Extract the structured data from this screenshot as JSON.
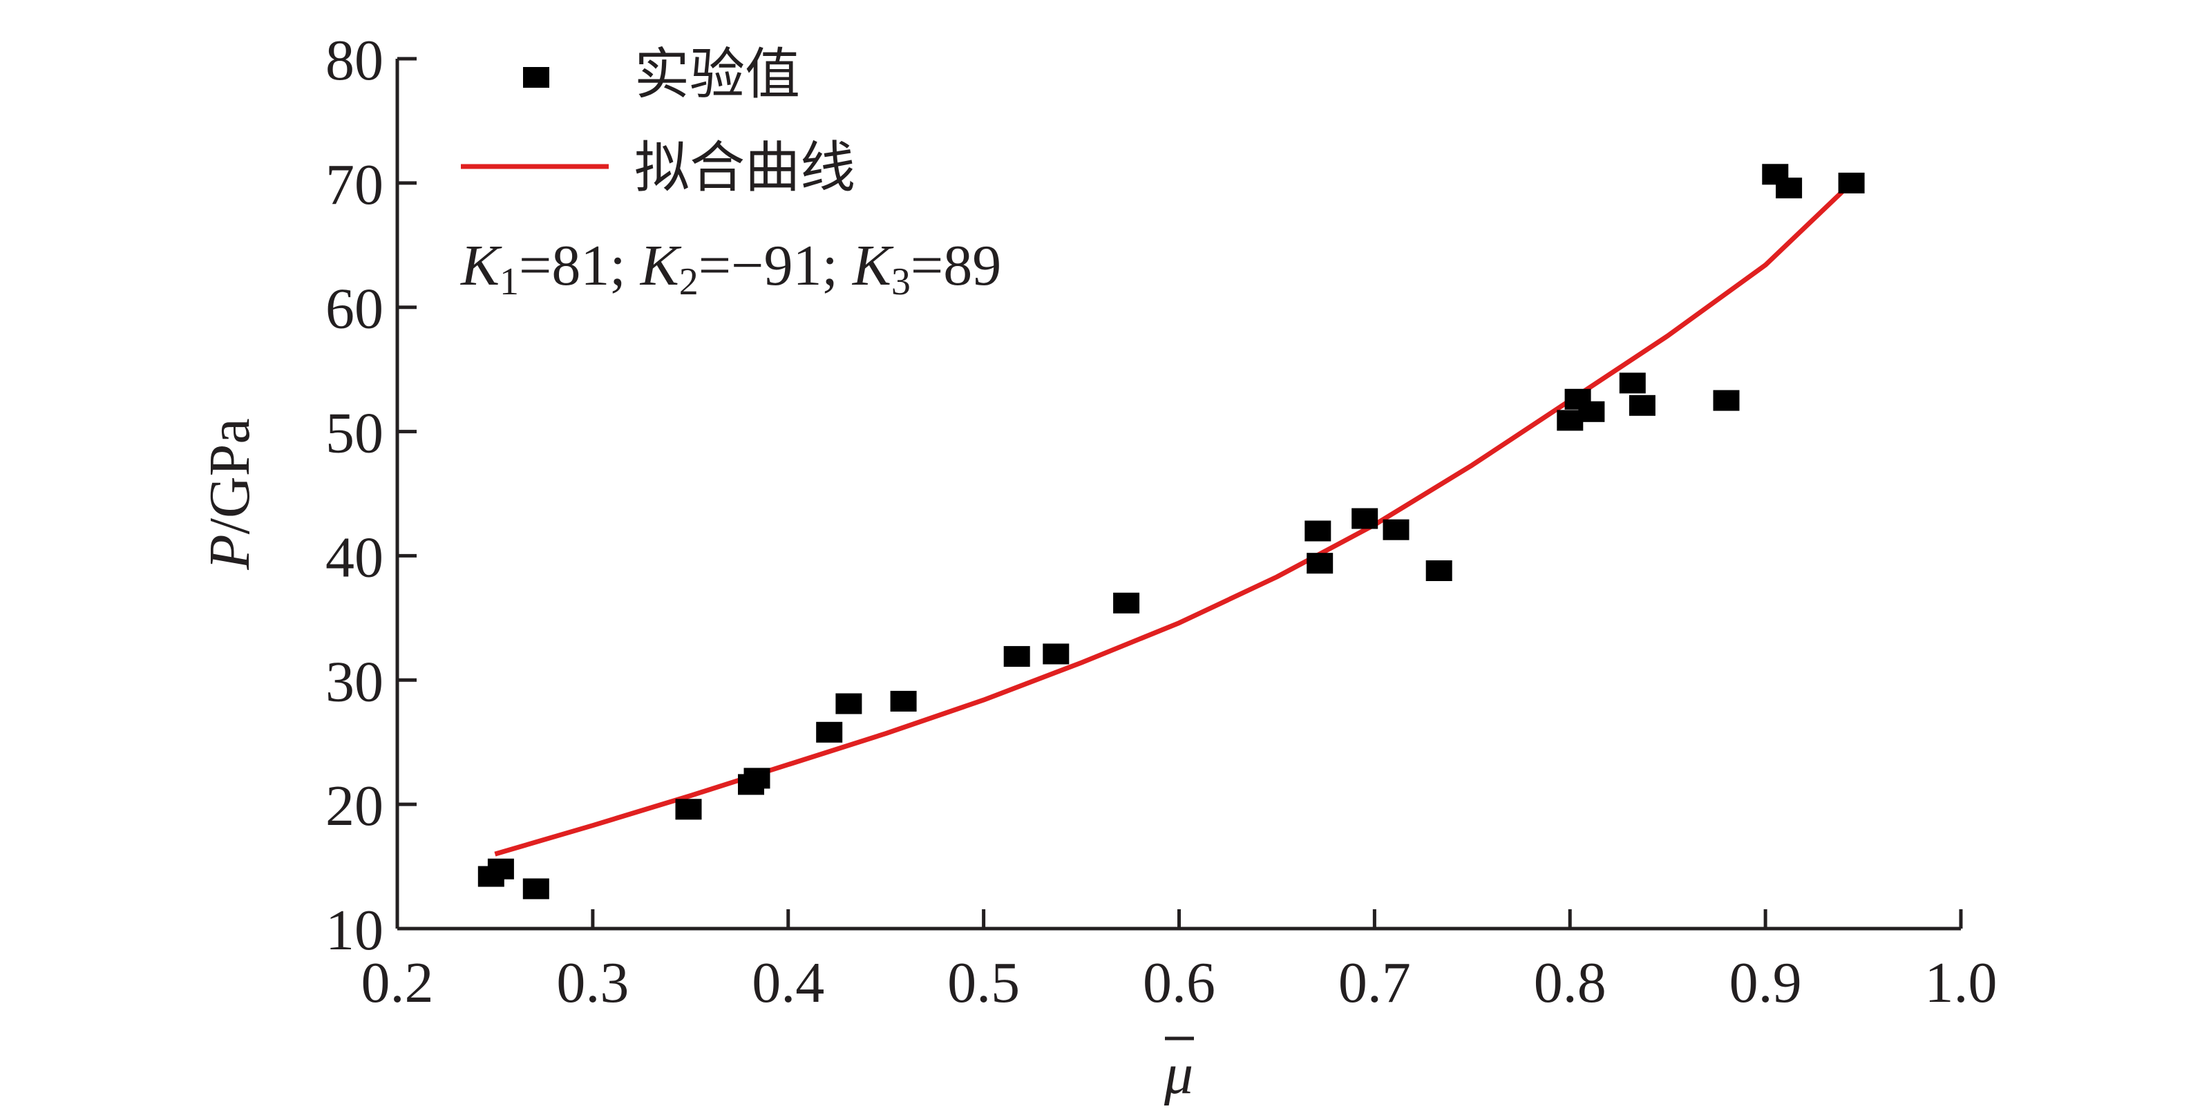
{
  "chart_data": {
    "type": "scatter",
    "xlabel": "μ",
    "ylabel_var": "P",
    "ylabel_unit": "/GPa",
    "xlim": [
      0.2,
      1.0
    ],
    "ylim": [
      10,
      80
    ],
    "x_ticks": [
      "0.2",
      "0.3",
      "0.4",
      "0.5",
      "0.6",
      "0.7",
      "0.8",
      "0.9",
      "1.0"
    ],
    "y_ticks": [
      "10",
      "20",
      "30",
      "40",
      "50",
      "60",
      "70",
      "80"
    ],
    "grid": false,
    "legend_position": "top-left",
    "series": [
      {
        "name": "实验值",
        "kind": "scatter",
        "marker": "square",
        "color": "#000000",
        "points": [
          [
            0.248,
            14.2
          ],
          [
            0.253,
            14.8
          ],
          [
            0.271,
            13.2
          ],
          [
            0.349,
            19.6
          ],
          [
            0.381,
            21.6
          ],
          [
            0.384,
            22.1
          ],
          [
            0.421,
            25.8
          ],
          [
            0.431,
            28.1
          ],
          [
            0.459,
            28.3
          ],
          [
            0.517,
            31.9
          ],
          [
            0.537,
            32.1
          ],
          [
            0.573,
            36.2
          ],
          [
            0.671,
            42.0
          ],
          [
            0.672,
            39.4
          ],
          [
            0.695,
            43.0
          ],
          [
            0.711,
            42.1
          ],
          [
            0.733,
            38.8
          ],
          [
            0.8,
            50.9
          ],
          [
            0.804,
            52.6
          ],
          [
            0.811,
            51.6
          ],
          [
            0.832,
            53.9
          ],
          [
            0.837,
            52.1
          ],
          [
            0.88,
            52.5
          ],
          [
            0.905,
            70.7
          ],
          [
            0.912,
            69.6
          ],
          [
            0.944,
            70.0
          ]
        ]
      },
      {
        "name": "拟合曲线",
        "kind": "line",
        "color": "#e02020",
        "points": [
          [
            0.25,
            16.0
          ],
          [
            0.3,
            18.3
          ],
          [
            0.35,
            20.7
          ],
          [
            0.4,
            23.2
          ],
          [
            0.45,
            25.7
          ],
          [
            0.5,
            28.4
          ],
          [
            0.55,
            31.4
          ],
          [
            0.6,
            34.6
          ],
          [
            0.65,
            38.3
          ],
          [
            0.7,
            42.5
          ],
          [
            0.75,
            47.3
          ],
          [
            0.8,
            52.5
          ],
          [
            0.85,
            57.7
          ],
          [
            0.9,
            63.4
          ],
          [
            0.94,
            69.4
          ]
        ]
      }
    ],
    "annotation": {
      "k1_var": "K",
      "k1_sub": "1",
      "k1_val": "=81; ",
      "k2_var": "K",
      "k2_sub": "2",
      "k2_val": "=−91; ",
      "k3_var": "K",
      "k3_sub": "3",
      "k3_val": "=89"
    }
  }
}
